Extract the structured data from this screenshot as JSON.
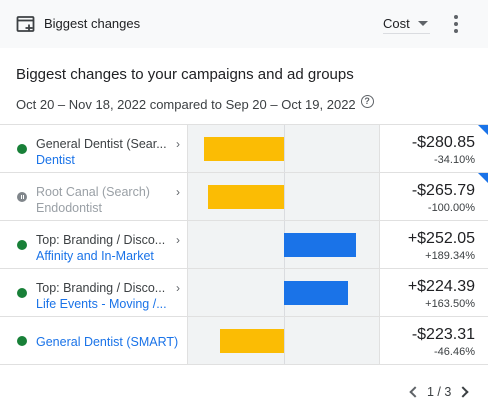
{
  "header": {
    "title": "Biggest changes",
    "metric": "Cost"
  },
  "section": {
    "title": "Biggest changes to your campaigns and ad groups",
    "date_range": "Oct 20 – Nov 18, 2022 compared to Sep 20 – Oct 19, 2022",
    "help_glyph": "?"
  },
  "rows": [
    {
      "campaign": "General Dentist (Sear...",
      "ad_group": "Dentist",
      "status": "enabled",
      "change": "-$280.85",
      "percent": "-34.10%",
      "value": -280.85,
      "flag": true
    },
    {
      "campaign": "Root Canal (Search)",
      "ad_group": "Endodontist",
      "status": "paused",
      "change": "-$265.79",
      "percent": "-100.00%",
      "value": -265.79,
      "flag": true
    },
    {
      "campaign": "Top: Branding / Disco...",
      "ad_group": "Affinity and In-Market",
      "status": "enabled",
      "change": "+$252.05",
      "percent": "+189.34%",
      "value": 252.05,
      "flag": false
    },
    {
      "campaign": "Top: Branding / Disco...",
      "ad_group": "Life Events - Moving /...",
      "status": "enabled",
      "change": "+$224.39",
      "percent": "+163.50%",
      "value": 224.39,
      "flag": false
    },
    {
      "campaign": "General Dentist (SMART)",
      "ad_group": "",
      "status": "enabled",
      "change": "-$223.31",
      "percent": "-46.46%",
      "value": -223.31,
      "flag": false
    }
  ],
  "pager": {
    "label": "1 / 3"
  },
  "colors": {
    "decrease": "#fbbc04",
    "increase": "#1a73e8",
    "enabled": "#188038",
    "paused": "#80868b"
  }
}
